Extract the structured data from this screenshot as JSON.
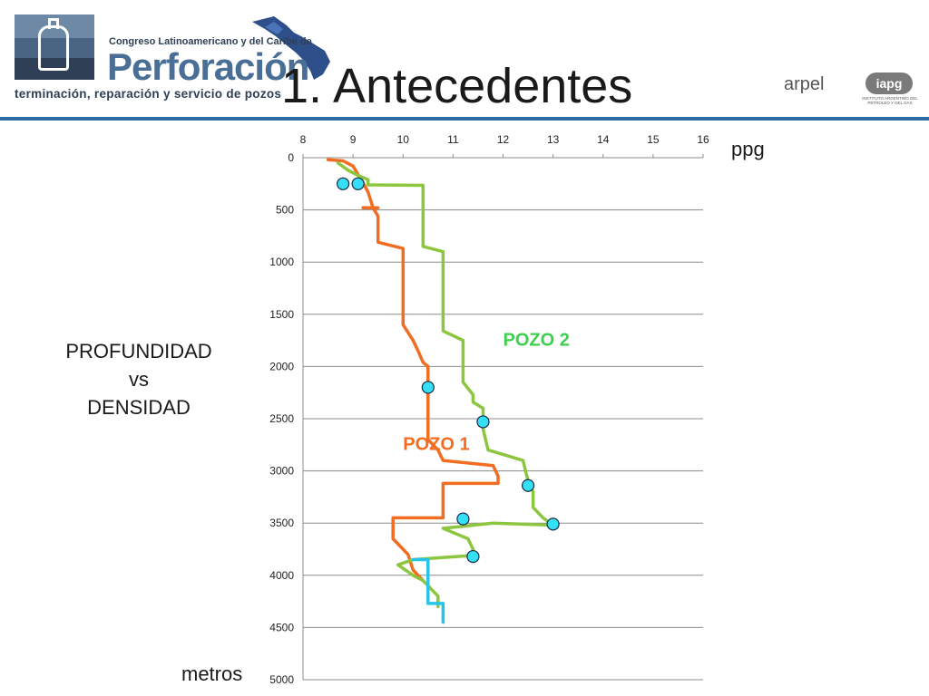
{
  "header": {
    "logo_line1": "Congreso Latinoamericano y del Caribe de",
    "logo_word": "Perforación",
    "logo_line2": "terminación, reparación y servicio de pozos",
    "title": "1. Antecedentes",
    "partner1": "arpel",
    "partner2": "iapg",
    "partner2_sub": "INSTITUTO ARGENTINO DEL PETROLEO Y DEL GAS",
    "accent_color": "#2e6aa6"
  },
  "side_label": {
    "line1": "PROFUNDIDAD",
    "line2": "vs",
    "line3": "DENSIDAD"
  },
  "chart_data": {
    "type": "line",
    "x_unit": "ppg",
    "y_unit": "metros",
    "xlim": [
      8,
      16
    ],
    "ylim": [
      0,
      5000
    ],
    "y_inverted": true,
    "x_axis_position": "top",
    "x_ticks": [
      8,
      9,
      10,
      11,
      12,
      13,
      14,
      15,
      16
    ],
    "y_ticks": [
      0,
      500,
      1000,
      1500,
      2000,
      2500,
      3000,
      3500,
      4000,
      4500,
      5000
    ],
    "grid": "horizontal",
    "series": [
      {
        "name": "POZO 1",
        "color": "#f26d21",
        "points": [
          [
            8.5,
            20
          ],
          [
            8.8,
            30
          ],
          [
            9.0,
            80
          ],
          [
            9.2,
            240
          ],
          [
            9.3,
            330
          ],
          [
            9.4,
            480
          ],
          [
            9.5,
            560
          ],
          [
            9.5,
            810
          ],
          [
            10.0,
            870
          ],
          [
            10.0,
            1600
          ],
          [
            10.2,
            1750
          ],
          [
            10.3,
            1850
          ],
          [
            10.4,
            1960
          ],
          [
            10.5,
            2000
          ],
          [
            10.5,
            2700
          ],
          [
            10.7,
            2800
          ],
          [
            10.8,
            2900
          ],
          [
            11.8,
            2950
          ],
          [
            11.9,
            3050
          ],
          [
            11.9,
            3120
          ],
          [
            10.8,
            3120
          ],
          [
            10.8,
            3450
          ],
          [
            9.8,
            3450
          ],
          [
            9.8,
            3650
          ],
          [
            10.1,
            3800
          ],
          [
            10.2,
            3950
          ],
          [
            10.4,
            4050
          ]
        ]
      },
      {
        "name": "",
        "color": "#f26d21",
        "points": [
          [
            9.2,
            480
          ],
          [
            9.5,
            480
          ]
        ]
      },
      {
        "name": "POZO 2",
        "color": "#8cc63f",
        "points": [
          [
            8.7,
            50
          ],
          [
            8.9,
            120
          ],
          [
            9.1,
            170
          ],
          [
            9.3,
            210
          ],
          [
            9.3,
            260
          ],
          [
            10.4,
            265
          ],
          [
            10.4,
            850
          ],
          [
            10.8,
            900
          ],
          [
            10.8,
            1320
          ],
          [
            10.8,
            1500
          ],
          [
            10.8,
            1660
          ],
          [
            11.2,
            1750
          ],
          [
            11.2,
            2150
          ],
          [
            11.4,
            2270
          ],
          [
            11.4,
            2340
          ],
          [
            11.6,
            2400
          ],
          [
            11.6,
            2600
          ],
          [
            11.7,
            2800
          ],
          [
            12.4,
            2900
          ],
          [
            12.5,
            3100
          ],
          [
            12.6,
            3200
          ],
          [
            12.6,
            3350
          ],
          [
            12.8,
            3450
          ],
          [
            13.0,
            3520
          ],
          [
            11.8,
            3500
          ],
          [
            10.8,
            3550
          ],
          [
            11.3,
            3650
          ],
          [
            11.4,
            3750
          ],
          [
            11.4,
            3810
          ],
          [
            10.2,
            3850
          ],
          [
            9.9,
            3900
          ],
          [
            10.2,
            4000
          ],
          [
            10.4,
            4050
          ],
          [
            10.5,
            4100
          ],
          [
            10.7,
            4200
          ],
          [
            10.7,
            4300
          ]
        ]
      },
      {
        "name": "",
        "color": "#27c4ea",
        "points": [
          [
            10.2,
            3850
          ],
          [
            10.5,
            3850
          ],
          [
            10.5,
            4270
          ],
          [
            10.8,
            4270
          ],
          [
            10.8,
            4450
          ]
        ]
      }
    ],
    "markers": {
      "color": "#33e0f5",
      "points": [
        [
          8.8,
          250
        ],
        [
          9.1,
          250
        ],
        [
          10.5,
          2200
        ],
        [
          11.6,
          2530
        ],
        [
          12.5,
          3140
        ],
        [
          11.2,
          3460
        ],
        [
          13.0,
          3510
        ],
        [
          11.4,
          3820
        ]
      ]
    },
    "annotations": [
      {
        "text": "POZO 2",
        "x": 12.0,
        "y": 1800,
        "color": "#3ecf4e"
      },
      {
        "text": "POZO 1",
        "x": 10.0,
        "y": 2800,
        "color": "#f26d21"
      }
    ]
  }
}
